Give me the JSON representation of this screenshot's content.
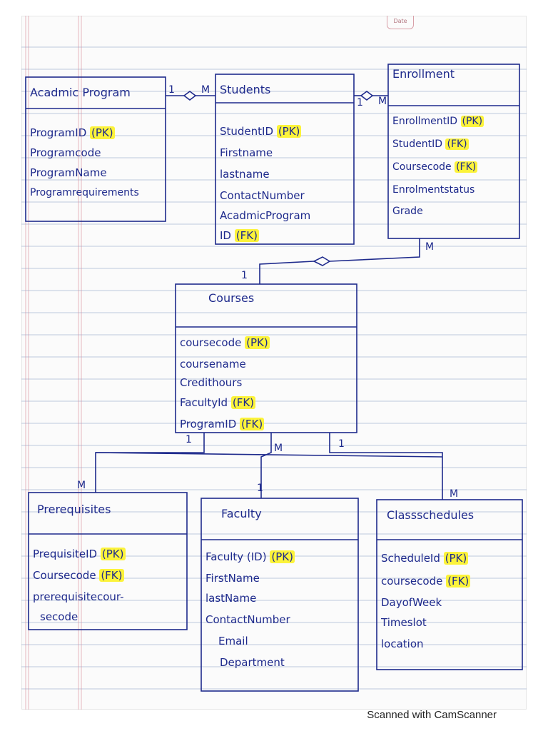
{
  "header": {
    "date_label": "Date"
  },
  "entities": {
    "academic_program": {
      "name": "Acadmic Program",
      "attributes": [
        {
          "text": "ProgramID",
          "key": "(PK)"
        },
        {
          "text": "Programcode",
          "key": ""
        },
        {
          "text": "ProgramName",
          "key": ""
        },
        {
          "text": "Programrequirements",
          "key": ""
        }
      ]
    },
    "students": {
      "name": "Students",
      "attributes": [
        {
          "text": "StudentID",
          "key": "(PK)"
        },
        {
          "text": "Firstname",
          "key": ""
        },
        {
          "text": "lastname",
          "key": ""
        },
        {
          "text": "ContactNumber",
          "key": ""
        },
        {
          "text": "AcadmicProgram",
          "key": ""
        },
        {
          "text": "ID",
          "key": "(FK)"
        }
      ]
    },
    "enrollment": {
      "name": "Enrollment",
      "attributes": [
        {
          "text": "EnrollmentID",
          "key": "(PK)"
        },
        {
          "text": "StudentID",
          "key": "(FK)"
        },
        {
          "text": "Coursecode",
          "key": "(FK)"
        },
        {
          "text": "Enrolmentstatus",
          "key": ""
        },
        {
          "text": "Grade",
          "key": ""
        }
      ]
    },
    "courses": {
      "name": "Courses",
      "attributes": [
        {
          "text": "coursecode",
          "key": "(PK)"
        },
        {
          "text": "coursename",
          "key": ""
        },
        {
          "text": "Credithours",
          "key": ""
        },
        {
          "text": "FacultyId",
          "key": "(FK)"
        },
        {
          "text": "ProgramID",
          "key": "(FK)"
        }
      ]
    },
    "prerequisites": {
      "name": "Prerequisites",
      "attributes": [
        {
          "text": "PrequisiteID",
          "key": "(PK)"
        },
        {
          "text": "Coursecode",
          "key": "(FK)"
        },
        {
          "text": "prerequisitecour-",
          "key": ""
        },
        {
          "text": "secode",
          "key": ""
        }
      ]
    },
    "faculty": {
      "name": "Faculty",
      "attributes": [
        {
          "text": "Faculty (ID)",
          "key": "(PK)"
        },
        {
          "text": "FirstName",
          "key": ""
        },
        {
          "text": "lastName",
          "key": ""
        },
        {
          "text": "ContactNumber",
          "key": ""
        },
        {
          "text": "Email",
          "key": ""
        },
        {
          "text": "Department",
          "key": ""
        }
      ]
    },
    "class_schedules": {
      "name": "Classschedules",
      "attributes": [
        {
          "text": "ScheduleId",
          "key": "(PK)"
        },
        {
          "text": "coursecode",
          "key": "(FK)"
        },
        {
          "text": "DayofWeek",
          "key": ""
        },
        {
          "text": "Timeslot",
          "key": ""
        },
        {
          "text": "location",
          "key": ""
        }
      ]
    }
  },
  "multiplicities": {
    "ap_students_one": "1",
    "ap_students_many": "M",
    "students_enroll_one": "1",
    "students_enroll_many": "M",
    "enroll_courses_many": "M",
    "enroll_courses_one": "1",
    "courses_prereq_one": "1",
    "courses_prereq_many": "M",
    "courses_faculty_many": "M",
    "courses_faculty_one": "1",
    "courses_sched_one": "1",
    "courses_sched_many": "M"
  },
  "footer": {
    "scanner_text": "Scanned with CamScanner"
  },
  "colors": {
    "ink": "#1e2a8c",
    "highlight": "#fcf33a",
    "rule_line": "#8aa0c8",
    "margin_line": "#d98a98"
  }
}
